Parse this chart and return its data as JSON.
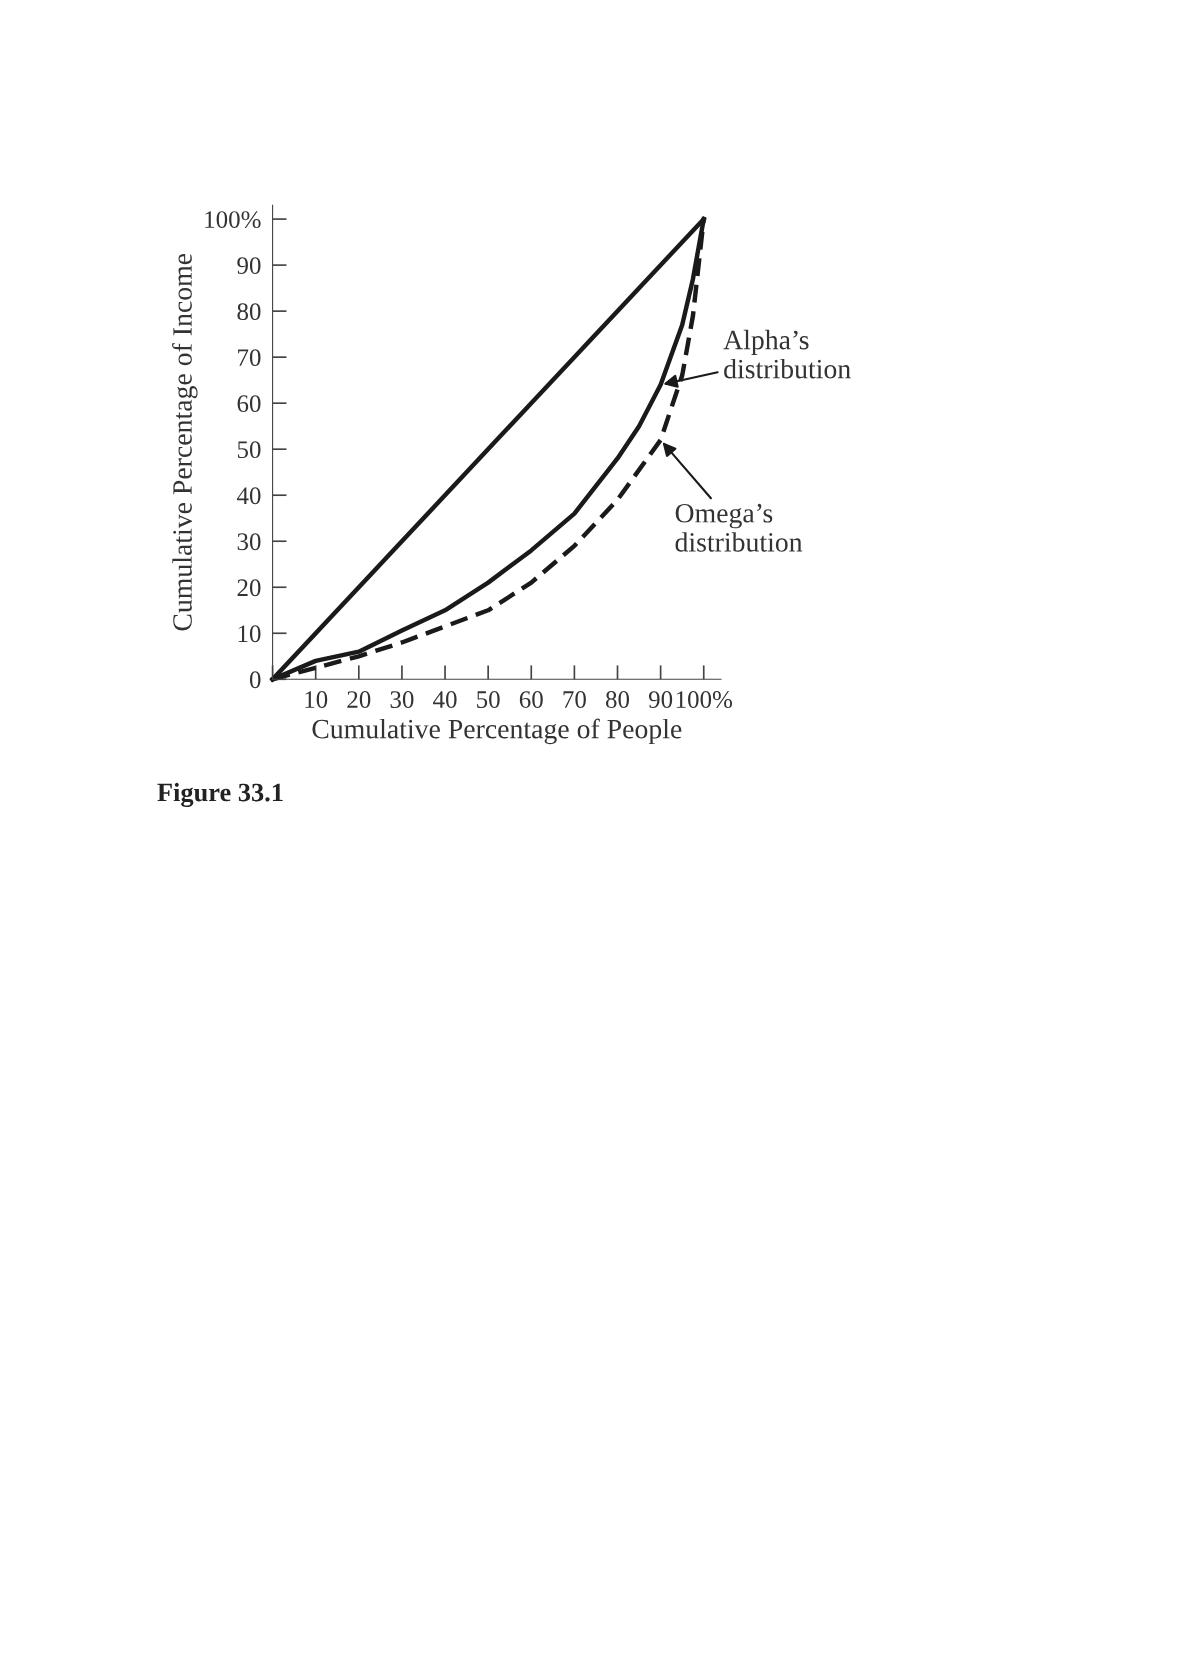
{
  "chart_data": {
    "type": "line",
    "xlabel": "Cumulative Percentage of People",
    "ylabel": "Cumulative Percentage of Income",
    "xlim": [
      0,
      104
    ],
    "ylim": [
      0,
      103
    ],
    "xticks": [
      {
        "value": 0,
        "label": null
      },
      10,
      20,
      30,
      40,
      50,
      60,
      70,
      80,
      90,
      {
        "value": 100,
        "label": "100%"
      }
    ],
    "yticks": [
      0,
      10,
      20,
      30,
      40,
      50,
      60,
      70,
      80,
      90,
      {
        "value": 100,
        "label": "100%"
      }
    ],
    "grid": false,
    "legend": false,
    "marker": "none",
    "series": [
      {
        "color": "#1a1a1a",
        "line_style": "solid",
        "x": [
          0,
          100
        ],
        "values": [
          0,
          100
        ]
      },
      {
        "color": "#1a1a1a",
        "line_style": "solid",
        "x": [
          0,
          10,
          20,
          30,
          40,
          50,
          60,
          70,
          80,
          85,
          90,
          95,
          97.5,
          100
        ],
        "values": [
          0,
          4,
          6,
          10.6,
          15,
          21,
          28,
          36,
          48,
          55,
          64,
          77,
          87,
          100
        ]
      },
      {
        "color": "#1a1a1a",
        "line_style": "dashed",
        "x": [
          0,
          10,
          20,
          30,
          40,
          50,
          60,
          70,
          80,
          90,
          95,
          97.5,
          100
        ],
        "values": [
          0,
          2.5,
          5,
          8,
          11.5,
          15,
          21,
          29,
          39,
          52,
          66,
          79,
          100
        ]
      }
    ],
    "annotations": [
      {
        "text": "Alpha’s\ndistribution",
        "x": 90,
        "y": 64
      },
      {
        "text": "Omega’s\ndistribution",
        "x": 90,
        "y": 52
      },
      "Figure 33.1"
    ]
  }
}
